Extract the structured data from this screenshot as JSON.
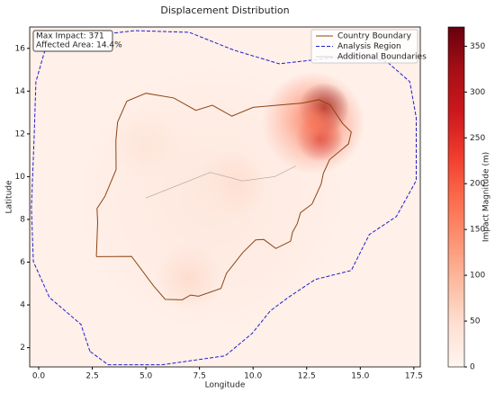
{
  "chart_data": {
    "type": "map-heatmap",
    "title": "Displacement Distribution",
    "xlabel": "Longitude",
    "ylabel": "Latitude",
    "colorbar_label": "Impact Magnitude (m)",
    "annotation": [
      "Max Impact: 371",
      "Affected Area: 14.4%"
    ],
    "xlim": [
      -0.42,
      17.8
    ],
    "ylim": [
      1.1,
      17.0
    ],
    "xticks": [
      {
        "value": 0,
        "label": "0.0"
      },
      {
        "value": 2.5,
        "label": "2.5"
      },
      {
        "value": 5,
        "label": "5.0"
      },
      {
        "value": 7.5,
        "label": "7.5"
      },
      {
        "value": 10,
        "label": "10.0"
      },
      {
        "value": 12.5,
        "label": "12.5"
      },
      {
        "value": 15,
        "label": "15.0"
      },
      {
        "value": 17.5,
        "label": "17.5"
      }
    ],
    "yticks": [
      2,
      4,
      6,
      8,
      10,
      12,
      14,
      16
    ],
    "clim": [
      0,
      371
    ],
    "cticks": [
      0,
      50,
      100,
      150,
      200,
      250,
      300,
      350
    ],
    "colorscale": [
      "#fff5f0",
      "#fee0d2",
      "#fcbba1",
      "#fc9272",
      "#fb6a4a",
      "#ef3b2c",
      "#cb181d",
      "#a50f15",
      "#67000d"
    ],
    "legend_position": "upper right",
    "series": [
      {
        "name": "Country Boundary",
        "color": "#8b4513",
        "style": "solid",
        "lon": [
          2.69,
          2.75,
          2.72,
          3.09,
          3.61,
          3.6,
          3.68,
          4.11,
          5.0,
          6.3,
          7.33,
          8.1,
          9.01,
          10.0,
          11.0,
          12.3,
          13.08,
          13.6,
          14.18,
          14.58,
          14.45,
          13.57,
          13.28,
          13.17,
          12.75,
          12.21,
          12.06,
          11.84,
          11.75,
          11.06,
          10.5,
          10.12,
          9.52,
          8.76,
          8.5,
          7.46,
          7.08,
          6.7,
          5.9,
          5.36,
          4.33,
          2.69
        ],
        "lat": [
          6.26,
          7.87,
          8.51,
          9.08,
          10.33,
          11.69,
          12.55,
          13.53,
          13.9,
          13.68,
          13.1,
          13.34,
          12.83,
          13.24,
          13.33,
          13.44,
          13.6,
          13.35,
          12.48,
          12.09,
          11.53,
          10.8,
          10.16,
          9.64,
          8.72,
          8.31,
          7.8,
          7.4,
          6.98,
          6.64,
          7.06,
          7.04,
          6.45,
          5.48,
          4.77,
          4.41,
          4.46,
          4.24,
          4.26,
          4.89,
          6.27,
          6.26
        ]
      },
      {
        "name": "Analysis Region",
        "color": "#1f1fcc",
        "style": "dashed",
        "lon": [
          2.39,
          1.97,
          0.5,
          -0.25,
          -0.34,
          -0.21,
          -0.13,
          0.29,
          1.97,
          4.5,
          7.02,
          9.12,
          11.22,
          13.11,
          15.0,
          16.26,
          17.31,
          17.61,
          17.61,
          16.68,
          15.42,
          14.58,
          12.9,
          11.64,
          10.8,
          9.96,
          8.7,
          5.76,
          3.24,
          2.39
        ],
        "lat": [
          1.83,
          3.09,
          4.35,
          6.03,
          8.55,
          11.92,
          14.44,
          15.91,
          16.54,
          16.83,
          16.75,
          15.91,
          15.28,
          15.49,
          15.7,
          15.36,
          14.44,
          12.76,
          9.82,
          8.13,
          7.29,
          5.61,
          5.19,
          4.35,
          3.72,
          2.67,
          1.62,
          1.2,
          1.2,
          1.83
        ]
      },
      {
        "name": "Additional Boundaries",
        "color": "#b0a0a0",
        "style": "solid",
        "lon": [
          5.0,
          6.5,
          8.0,
          9.5,
          11.0,
          12.0
        ],
        "lat": [
          9.0,
          9.6,
          10.2,
          9.8,
          10.0,
          10.5
        ]
      }
    ],
    "hotspots": [
      {
        "lon": 13.3,
        "lat": 13.2,
        "value": 371,
        "spread": 1.2
      },
      {
        "lon": 13.1,
        "lat": 11.8,
        "value": 300,
        "spread": 1.1
      },
      {
        "lon": 12.8,
        "lat": 12.5,
        "value": 180,
        "spread": 2.4
      },
      {
        "lon": 9.0,
        "lat": 9.6,
        "value": 80,
        "spread": 1.6
      },
      {
        "lon": 7.0,
        "lat": 5.3,
        "value": 60,
        "spread": 1.6
      },
      {
        "lon": 5.0,
        "lat": 11.5,
        "value": 40,
        "spread": 1.8
      },
      {
        "lon": 8.0,
        "lat": 9.0,
        "value": 30,
        "spread": 6.5
      }
    ]
  }
}
